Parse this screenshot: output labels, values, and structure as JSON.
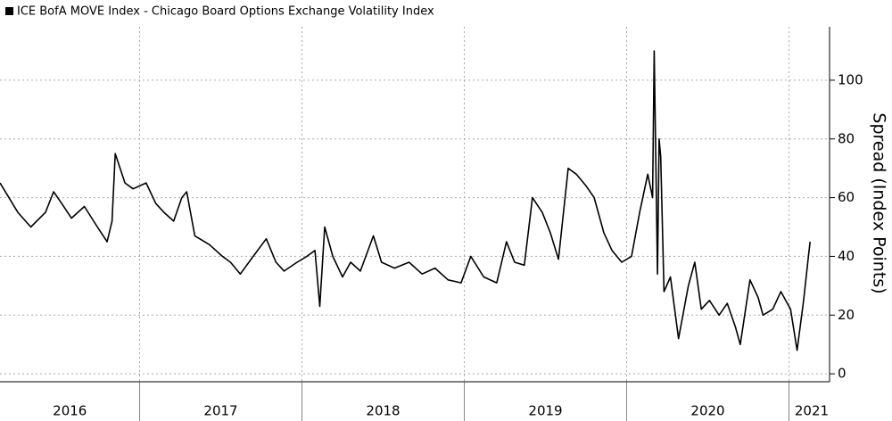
{
  "chart_data": {
    "type": "line",
    "y_label": "Spread (Index Points)",
    "x": [
      2016.14,
      2016.25,
      2016.33,
      2016.42,
      2016.47,
      2016.52,
      2016.58,
      2016.66,
      2016.74,
      2016.8,
      2016.83,
      2016.85,
      2016.91,
      2016.96,
      2017.04,
      2017.1,
      2017.15,
      2017.21,
      2017.26,
      2017.29,
      2017.34,
      2017.43,
      2017.51,
      2017.56,
      2017.62,
      2017.7,
      2017.78,
      2017.84,
      2017.89,
      2017.97,
      2018.03,
      2018.08,
      2018.11,
      2018.14,
      2018.19,
      2018.25,
      2018.3,
      2018.36,
      2018.44,
      2018.49,
      2018.57,
      2018.66,
      2018.74,
      2018.82,
      2018.9,
      2018.98,
      2019.04,
      2019.12,
      2019.2,
      2019.26,
      2019.31,
      2019.37,
      2019.42,
      2019.48,
      2019.53,
      2019.58,
      2019.64,
      2019.69,
      2019.75,
      2019.8,
      2019.86,
      2019.91,
      2019.97,
      2020.03,
      2020.08,
      2020.13,
      2020.16,
      2020.17,
      2020.19,
      2020.2,
      2020.21,
      2020.23,
      2020.27,
      2020.32,
      2020.38,
      2020.42,
      2020.46,
      2020.51,
      2020.57,
      2020.62,
      2020.67,
      2020.7,
      2020.76,
      2020.81,
      2020.84,
      2020.9,
      2020.95,
      2021.01,
      2021.05,
      2021.09,
      2021.12,
      2021.13
    ],
    "series": [
      {
        "name": "ICE BofA MOVE Index - Chicago Board Options Exchange Volatility Index",
        "color": "#000000",
        "values": [
          65,
          55,
          50,
          55,
          62,
          58,
          53,
          57,
          50,
          45,
          52,
          75,
          65,
          63,
          65,
          58,
          55,
          52,
          60,
          62,
          47,
          44,
          40,
          38,
          34,
          40,
          46,
          38,
          35,
          38,
          40,
          42,
          23,
          50,
          40,
          33,
          38,
          35,
          47,
          38,
          36,
          38,
          34,
          36,
          32,
          31,
          40,
          33,
          31,
          45,
          38,
          37,
          60,
          55,
          48,
          39,
          70,
          68,
          64,
          60,
          48,
          42,
          38,
          40,
          55,
          68,
          60,
          110,
          34,
          80,
          74,
          28,
          33,
          12,
          30,
          38,
          22,
          25,
          20,
          24,
          16,
          10,
          32,
          26,
          20,
          22,
          28,
          22,
          8,
          25,
          40,
          45
        ]
      }
    ],
    "xlim": [
      2016.14,
      2021.25
    ],
    "x_gridlines": [
      2017,
      2018,
      2019,
      2020,
      2021
    ],
    "xticks": [
      {
        "value": 2016.57,
        "label": "2016"
      },
      {
        "value": 2017.5,
        "label": "2017"
      },
      {
        "value": 2018.5,
        "label": "2018"
      },
      {
        "value": 2019.5,
        "label": "2019"
      },
      {
        "value": 2020.5,
        "label": "2020"
      },
      {
        "value": 2021.14,
        "label": "2021"
      }
    ],
    "ylim": [
      -2.7,
      118.2
    ],
    "yticks": [
      0,
      20,
      40,
      60,
      80,
      100
    ],
    "grid": true
  }
}
